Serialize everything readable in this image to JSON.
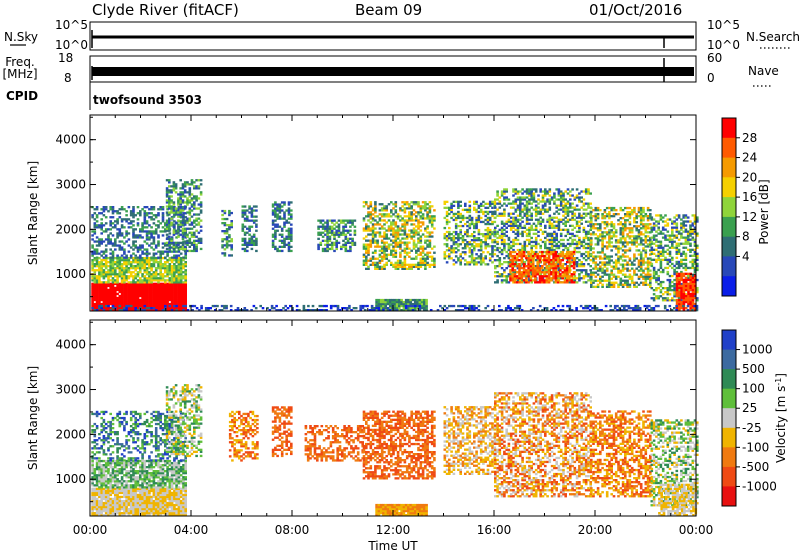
{
  "header": {
    "title": "Clyde River (fitACF)",
    "beam": "Beam 09",
    "date": "01/Oct/2016"
  },
  "top_panels": {
    "nsky_label": "N.Sky",
    "nsky_ticks": [
      "10^5",
      "10^0"
    ],
    "nsearch_label": "N.Search",
    "nsearch_ticks": [
      "10^5",
      "10^0"
    ],
    "freq_label_1": "Freq.",
    "freq_label_2": "[MHz]",
    "freq_ticks": [
      "18",
      "8"
    ],
    "nave_label": "Nave",
    "nave_ticks": [
      "60",
      "0"
    ],
    "cpid_label": "CPID",
    "cpid_value": "twofsound 3503"
  },
  "chart_data": [
    {
      "type": "heatmap",
      "panel": "power",
      "xlabel": "",
      "ylabel": "Slant Range [km]",
      "y_ticks": [
        "1000",
        "2000",
        "3000",
        "4000"
      ],
      "ylim": [
        180,
        4550
      ],
      "x_ticks": [
        "00:00",
        "04:00",
        "08:00",
        "12:00",
        "16:00",
        "20:00",
        "00:00"
      ],
      "colorbar_label": "Power [dB]",
      "colorbar_ticks": [
        "28",
        "24",
        "20",
        "16",
        "12",
        "8",
        "4"
      ],
      "colors": [
        "#ff0000",
        "#ff5a00",
        "#f59a00",
        "#f5d000",
        "#8fd43a",
        "#3aa04f",
        "#2f6e74",
        "#2848b8",
        "#0a1ee8"
      ]
    },
    {
      "type": "heatmap",
      "panel": "velocity",
      "xlabel": "Time UT",
      "ylabel": "Slant Range [km]",
      "y_ticks": [
        "1000",
        "2000",
        "3000",
        "4000"
      ],
      "ylim": [
        180,
        4550
      ],
      "x_ticks": [
        "00:00",
        "04:00",
        "08:00",
        "12:00",
        "16:00",
        "20:00",
        "00:00"
      ],
      "colorbar_label_main": "Velocity [m s",
      "colorbar_label_sup": "-1",
      "colorbar_label_end": "]",
      "colorbar_ticks": [
        "1000",
        "500",
        "100",
        "25",
        "-25",
        "-100",
        "-500",
        "-1000"
      ],
      "colors": [
        "#2040c8",
        "#3c6aa0",
        "#2f8a55",
        "#5fbf3a",
        "#c8c8c8",
        "#f0b400",
        "#f07a10",
        "#ef4a14",
        "#e81010"
      ]
    }
  ]
}
